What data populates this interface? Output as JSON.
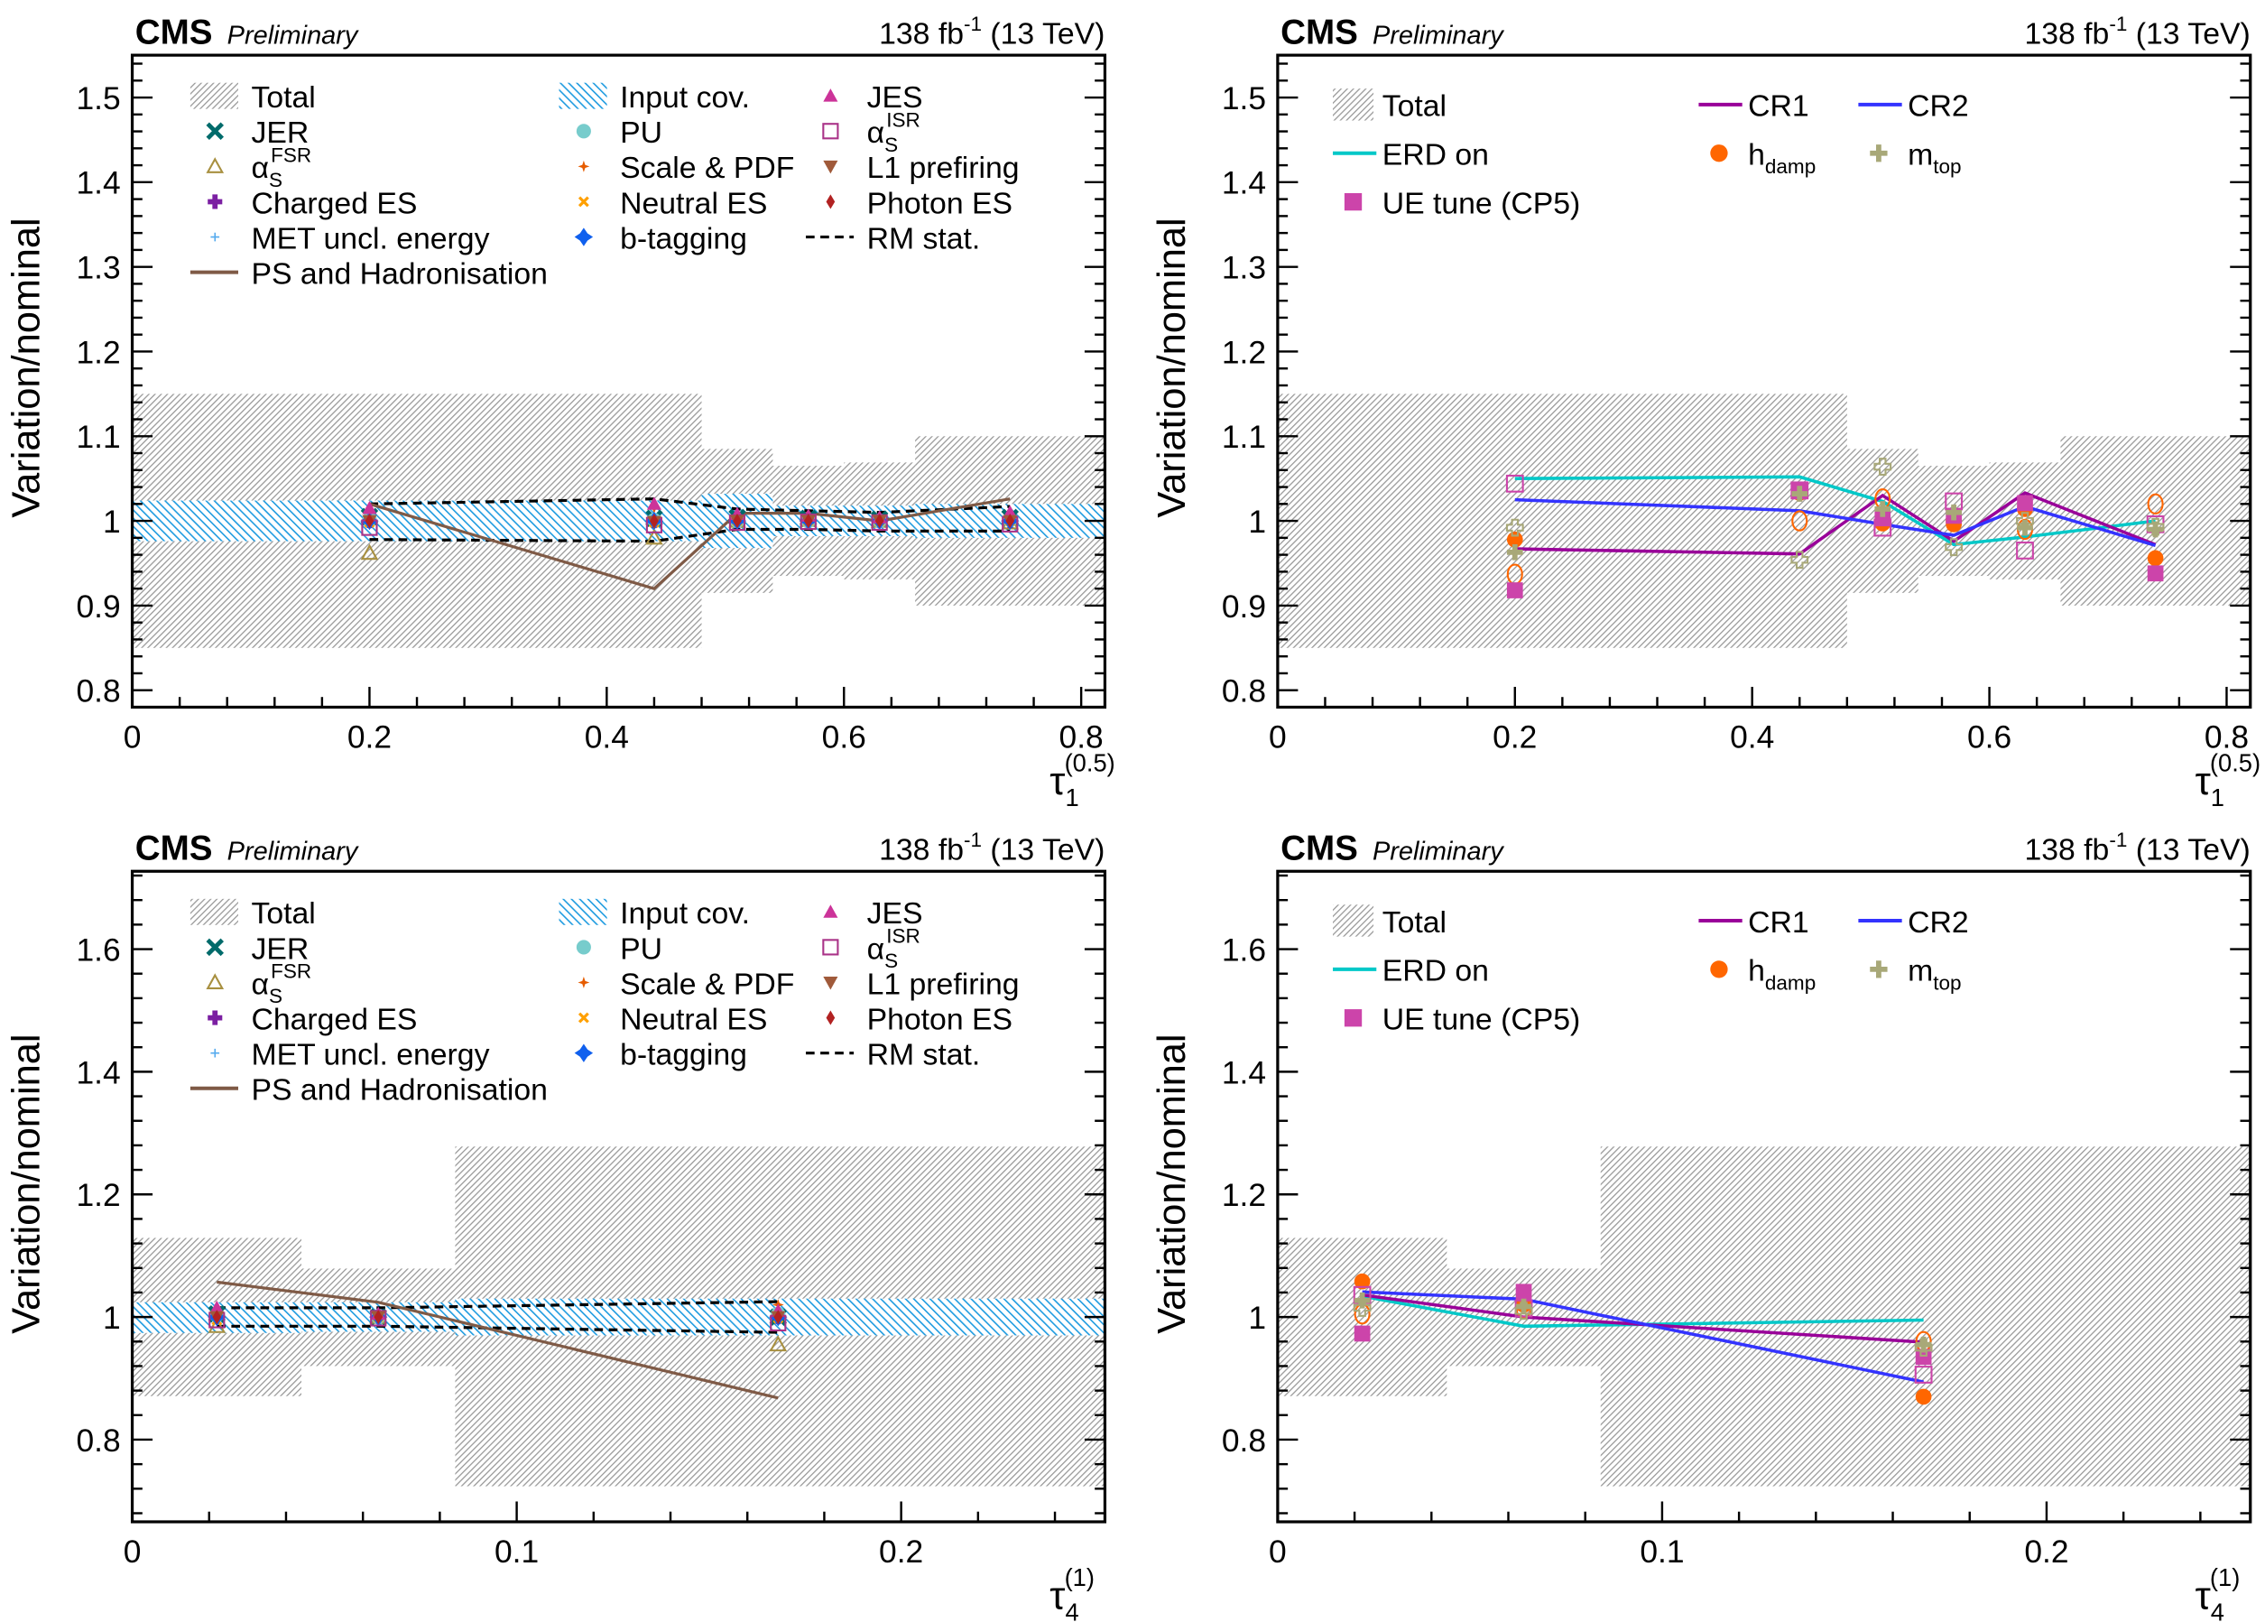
{
  "header": {
    "experiment": "CMS",
    "status": "Preliminary",
    "lumi": "138 fb",
    "lumi_sup": "-1",
    "energy": " (13 TeV)"
  },
  "colors": {
    "total": "#999999",
    "input_cov": "#1e9be0",
    "ps": "#7f5a46",
    "erd": "#00c8c8",
    "cr1": "#990099",
    "cr2": "#3333ff",
    "hdamp": "#ff6600",
    "ue": "#cc44aa",
    "mtop": "#a8a878"
  },
  "legend_left": [
    {
      "label": "Total",
      "kind": "total"
    },
    {
      "label": "JER",
      "kind": "m",
      "sys": "JER"
    },
    {
      "label": "α",
      "sub": "S",
      "sup": "FSR",
      "kind": "m",
      "sys": "aFSR"
    },
    {
      "label": "Charged ES",
      "kind": "m",
      "sys": "CES"
    },
    {
      "label": "MET uncl. energy",
      "kind": "m",
      "sys": "MET"
    },
    {
      "label": "PS and Hadronisation",
      "kind": "line"
    },
    {
      "label": "Input cov.",
      "kind": "cov"
    },
    {
      "label": "PU",
      "kind": "m",
      "sys": "PU"
    },
    {
      "label": "Scale & PDF",
      "kind": "m",
      "sys": "SPDF"
    },
    {
      "label": "Neutral ES",
      "kind": "m",
      "sys": "NES"
    },
    {
      "label": "b-tagging",
      "kind": "m",
      "sys": "BTAG"
    },
    {
      "label": "JES",
      "kind": "m",
      "sys": "JES"
    },
    {
      "label": "α",
      "sub": "S",
      "sup": "ISR",
      "kind": "m",
      "sys": "aISR"
    },
    {
      "label": "L1 prefiring",
      "kind": "m",
      "sys": "L1"
    },
    {
      "label": "Photon ES",
      "kind": "m",
      "sys": "PES"
    },
    {
      "label": "RM stat.",
      "kind": "dash"
    }
  ],
  "legend_right": [
    {
      "label": "Total",
      "kind": "total"
    },
    {
      "label": "CR1",
      "kind": "cr1"
    },
    {
      "label": "CR2",
      "kind": "cr2"
    },
    {
      "label": "ERD on",
      "kind": "erd"
    },
    {
      "label": "h",
      "sub": "damp",
      "kind": "hdamp"
    },
    {
      "label": "m",
      "sub": "top",
      "kind": "mtop"
    },
    {
      "label": "UE tune (CP5)",
      "kind": "ue"
    }
  ],
  "systematics": {
    "JER": {
      "marker": "xcross",
      "color": "#006b6b"
    },
    "aFSR": {
      "marker": "otri",
      "color": "#a89040"
    },
    "CES": {
      "marker": "plus",
      "color": "#7b1fa2"
    },
    "MET": {
      "marker": "smallplus",
      "color": "#55aaee"
    },
    "PU": {
      "marker": "circle",
      "color": "#77cccc"
    },
    "SPDF": {
      "marker": "star",
      "color": "#e65c00"
    },
    "NES": {
      "marker": "xsmall",
      "color": "#ffa000"
    },
    "BTAG": {
      "marker": "bstar",
      "color": "#1060ee"
    },
    "JES": {
      "marker": "tri",
      "color": "#cc3399"
    },
    "aISR": {
      "marker": "osquare",
      "color": "#aa3388"
    },
    "L1": {
      "marker": "itri",
      "color": "#a05a3a"
    },
    "PES": {
      "marker": "diamond",
      "color": "#b22222"
    }
  },
  "chart_data": [
    {
      "type": "band+line+scatter",
      "panel": "top-left",
      "xlabel": "τ",
      "xlabel_sub": "1",
      "xlabel_sup": "(0.5)",
      "ylabel": "Variation/nominal",
      "xlim": [
        0,
        0.82
      ],
      "ylim": [
        0.78,
        1.55
      ],
      "xticks": [
        0,
        0.2,
        0.4,
        0.6,
        0.8
      ],
      "xtick_labels": [
        "0",
        "0.2",
        "0.4",
        "0.6",
        "0.8"
      ],
      "yticks": [
        0.8,
        0.9,
        1.0,
        1.1,
        1.2,
        1.3,
        1.4,
        1.5
      ],
      "ytick_labels": [
        "0.8",
        "0.9",
        "1",
        "1.1",
        "1.2",
        "1.3",
        "1.4",
        "1.5"
      ],
      "bin_edges": [
        0,
        0.48,
        0.54,
        0.6,
        0.66,
        0.82
      ],
      "total_low": [
        0.85,
        0.915,
        0.935,
        0.931,
        0.9
      ],
      "total_high": [
        1.15,
        1.085,
        1.065,
        1.069,
        1.1
      ],
      "input_cov_low": [
        0.976,
        0.968,
        0.982,
        0.982,
        0.98
      ],
      "input_cov_high": [
        1.024,
        1.032,
        1.018,
        1.018,
        1.02
      ],
      "x": [
        0.2,
        0.44,
        0.51,
        0.57,
        0.63,
        0.74
      ],
      "rm_stat_high": [
        1.02,
        1.026,
        1.014,
        1.012,
        1.01,
        1.017
      ],
      "rm_stat_low": [
        0.978,
        0.976,
        0.99,
        0.99,
        0.988,
        0.988
      ],
      "ps_hadronisation": [
        1.02,
        0.92,
        1.009,
        1.009,
        1.0,
        1.026
      ],
      "markers": {
        "JER": [
          1.005,
          1.003,
          1.004,
          1.003,
          1.002,
          1.004
        ],
        "aFSR": [
          0.962,
          0.98,
          1.0,
          1.001,
          1.0,
          0.998
        ],
        "CES": [
          1.0,
          1.0,
          1.0,
          1.0,
          1.0,
          1.0
        ],
        "MET": [
          1.0,
          1.0,
          1.0,
          1.0,
          1.0,
          1.0
        ],
        "PU": [
          1.002,
          1.001,
          1.0,
          1.0,
          1.0,
          1.001
        ],
        "SPDF": [
          1.01,
          1.015,
          1.004,
          1.003,
          1.002,
          1.006
        ],
        "NES": [
          0.998,
          0.998,
          1.0,
          1.0,
          1.0,
          1.0
        ],
        "BTAG": [
          1.0,
          1.0,
          1.0,
          1.0,
          1.0,
          1.0
        ],
        "JES": [
          1.015,
          1.02,
          1.008,
          1.006,
          1.004,
          1.01
        ],
        "aISR": [
          0.992,
          0.995,
          0.998,
          0.999,
          0.998,
          0.996
        ],
        "L1": [
          1.0,
          0.999,
          1.0,
          1.0,
          1.0,
          1.0
        ],
        "PES": [
          1.0,
          1.0,
          1.0,
          1.0,
          1.0,
          1.0
        ]
      }
    },
    {
      "type": "band+line+scatter",
      "panel": "top-right",
      "xlabel": "τ",
      "xlabel_sub": "1",
      "xlabel_sup": "(0.5)",
      "ylabel": "Variation/nominal",
      "xlim": [
        0,
        0.82
      ],
      "ylim": [
        0.78,
        1.55
      ],
      "xticks": [
        0,
        0.2,
        0.4,
        0.6,
        0.8
      ],
      "xtick_labels": [
        "0",
        "0.2",
        "0.4",
        "0.6",
        "0.8"
      ],
      "yticks": [
        0.8,
        0.9,
        1.0,
        1.1,
        1.2,
        1.3,
        1.4,
        1.5
      ],
      "ytick_labels": [
        "0.8",
        "0.9",
        "1",
        "1.1",
        "1.2",
        "1.3",
        "1.4",
        "1.5"
      ],
      "bin_edges": [
        0,
        0.48,
        0.54,
        0.6,
        0.66,
        0.82
      ],
      "total_low": [
        0.85,
        0.915,
        0.935,
        0.931,
        0.9
      ],
      "total_high": [
        1.15,
        1.085,
        1.065,
        1.069,
        1.1
      ],
      "x": [
        0.2,
        0.44,
        0.51,
        0.57,
        0.63,
        0.74
      ],
      "series": [
        {
          "name": "ERD on",
          "values": [
            1.05,
            1.052,
            1.023,
            0.972,
            0.981,
            1.0
          ]
        },
        {
          "name": "CR1",
          "values": [
            0.967,
            0.961,
            1.03,
            0.976,
            1.033,
            0.972
          ]
        },
        {
          "name": "CR2",
          "values": [
            1.025,
            1.012,
            0.996,
            0.983,
            1.017,
            0.971
          ]
        }
      ],
      "variations": {
        "hdamp_up": [
          0.978,
          1.033,
          0.997,
          0.996,
          1.014,
          0.956
        ],
        "hdamp_down": [
          0.937,
          1.0,
          1.026,
          1.0,
          0.99,
          1.02
        ],
        "ue_up": [
          0.918,
          1.035,
          1.003,
          1.006,
          1.021,
          0.938
        ],
        "ue_down": [
          1.044,
          1.036,
          0.992,
          1.023,
          0.965,
          0.996
        ],
        "mtop_up": [
          0.963,
          1.032,
          1.014,
          1.01,
          0.992,
          0.99
        ],
        "mtop_down": [
          0.992,
          0.954,
          1.064,
          0.969,
          1.0,
          0.993
        ]
      }
    },
    {
      "type": "band+line+scatter",
      "panel": "bottom-left",
      "xlabel": "τ",
      "xlabel_sub": "4",
      "xlabel_sup": "(1)",
      "ylabel": "Variation/nominal",
      "xlim": [
        0,
        0.253
      ],
      "ylim": [
        0.666,
        1.727
      ],
      "xticks": [
        0,
        0.1,
        0.2
      ],
      "xtick_labels": [
        "0",
        "0.1",
        "0.2"
      ],
      "yticks": [
        0.8,
        1.0,
        1.2,
        1.4,
        1.6
      ],
      "ytick_labels": [
        "0.8",
        "1",
        "1.2",
        "1.4",
        "1.6"
      ],
      "bin_edges": [
        0,
        0.044,
        0.084,
        0.253
      ],
      "total_low": [
        0.871,
        0.92,
        0.724
      ],
      "total_high": [
        1.129,
        1.079,
        1.278
      ],
      "input_cov_low": [
        0.974,
        0.976,
        0.97
      ],
      "input_cov_high": [
        1.024,
        1.024,
        1.03
      ],
      "x": [
        0.022,
        0.064,
        0.168
      ],
      "rm_stat_high": [
        1.015,
        1.015,
        1.025
      ],
      "rm_stat_low": [
        0.985,
        0.985,
        0.975
      ],
      "ps_hadronisation": [
        1.057,
        1.024,
        0.868
      ],
      "markers": {
        "JER": [
          1.005,
          1.0,
          1.0
        ],
        "aFSR": [
          0.985,
          1.0,
          0.955
        ],
        "CES": [
          1.0,
          1.0,
          1.0
        ],
        "MET": [
          1.0,
          1.0,
          1.0
        ],
        "PU": [
          1.003,
          1.0,
          1.005
        ],
        "SPDF": [
          1.012,
          1.003,
          1.02
        ],
        "NES": [
          0.995,
          1.0,
          0.998
        ],
        "BTAG": [
          1.0,
          1.0,
          1.0
        ],
        "JES": [
          1.015,
          1.005,
          1.01
        ],
        "aISR": [
          0.995,
          0.998,
          0.99
        ],
        "L1": [
          1.0,
          1.0,
          1.0
        ],
        "PES": [
          1.0,
          1.0,
          1.0
        ]
      }
    },
    {
      "type": "band+line+scatter",
      "panel": "bottom-right",
      "xlabel": "τ",
      "xlabel_sub": "4",
      "xlabel_sup": "(1)",
      "ylabel": "Variation/nominal",
      "xlim": [
        0,
        0.253
      ],
      "ylim": [
        0.666,
        1.727
      ],
      "xticks": [
        0,
        0.1,
        0.2
      ],
      "xtick_labels": [
        "0",
        "0.1",
        "0.2"
      ],
      "yticks": [
        0.8,
        1.0,
        1.2,
        1.4,
        1.6
      ],
      "ytick_labels": [
        "0.8",
        "1",
        "1.2",
        "1.4",
        "1.6"
      ],
      "bin_edges": [
        0,
        0.044,
        0.084,
        0.253
      ],
      "total_low": [
        0.871,
        0.92,
        0.724
      ],
      "total_high": [
        1.129,
        1.079,
        1.278
      ],
      "x": [
        0.022,
        0.064,
        0.168
      ],
      "series": [
        {
          "name": "ERD on",
          "values": [
            1.034,
            0.985,
            0.995
          ]
        },
        {
          "name": "CR1",
          "values": [
            1.036,
            1.0,
            0.959
          ]
        },
        {
          "name": "CR2",
          "values": [
            1.041,
            1.029,
            0.894
          ]
        }
      ],
      "variations": {
        "hdamp_up": [
          1.058,
          1.02,
          0.87
        ],
        "hdamp_down": [
          1.005,
          1.014,
          0.96
        ],
        "ue_up": [
          0.973,
          1.041,
          0.935
        ],
        "ue_down": [
          1.036,
          1.014,
          0.906
        ],
        "mtop_up": [
          1.027,
          1.017,
          0.955
        ],
        "mtop_down": [
          1.015,
          1.01,
          0.95
        ]
      }
    }
  ]
}
